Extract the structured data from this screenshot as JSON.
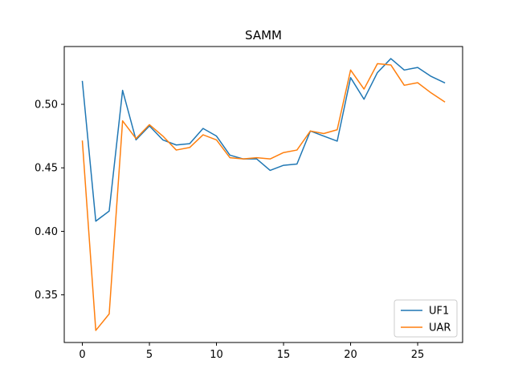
{
  "chart_data": {
    "type": "line",
    "title": "SAMM",
    "xlabel": "",
    "ylabel": "",
    "xlim": [
      -1.35,
      28.35
    ],
    "ylim": [
      0.3125,
      0.5455
    ],
    "xticks": [
      0,
      5,
      10,
      15,
      20,
      25
    ],
    "xtick_labels": [
      "0",
      "5",
      "10",
      "15",
      "20",
      "25"
    ],
    "yticks": [
      0.35,
      0.4,
      0.45,
      0.5
    ],
    "ytick_labels": [
      "0.35",
      "0.40",
      "0.45",
      "0.50"
    ],
    "grid": false,
    "legend_position": "lower-right",
    "x": [
      0,
      1,
      2,
      3,
      4,
      5,
      6,
      7,
      8,
      9,
      10,
      11,
      12,
      13,
      14,
      15,
      16,
      17,
      18,
      19,
      20,
      21,
      22,
      23,
      24,
      25,
      26,
      27
    ],
    "series": [
      {
        "name": "UF1",
        "color": "#1f77b4",
        "values": [
          0.518,
          0.408,
          0.416,
          0.511,
          0.472,
          0.483,
          0.472,
          0.468,
          0.469,
          0.481,
          0.475,
          0.46,
          0.457,
          0.457,
          0.448,
          0.452,
          0.453,
          0.479,
          0.475,
          0.471,
          0.521,
          0.504,
          0.525,
          0.536,
          0.527,
          0.529,
          0.522,
          0.517
        ]
      },
      {
        "name": "UAR",
        "color": "#ff7f0e",
        "values": [
          0.471,
          0.322,
          0.335,
          0.487,
          0.473,
          0.484,
          0.475,
          0.464,
          0.466,
          0.476,
          0.472,
          0.458,
          0.457,
          0.458,
          0.457,
          0.462,
          0.464,
          0.479,
          0.477,
          0.48,
          0.527,
          0.512,
          0.532,
          0.531,
          0.515,
          0.517,
          0.509,
          0.502
        ]
      }
    ]
  }
}
